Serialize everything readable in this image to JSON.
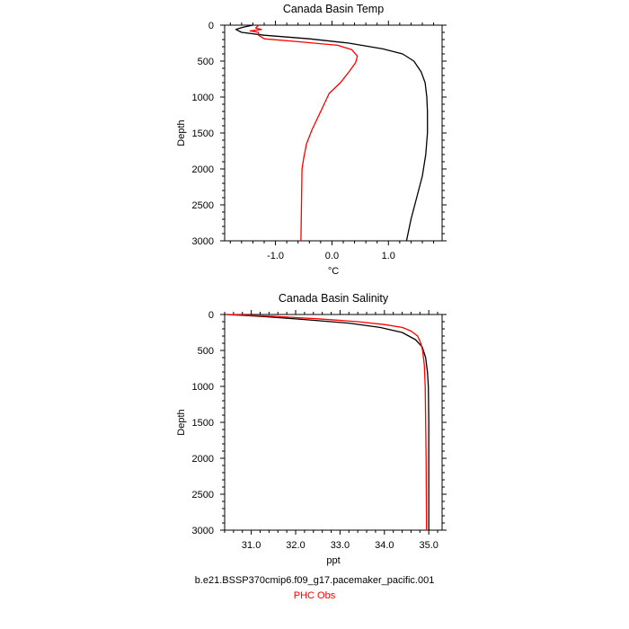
{
  "colors": {
    "model": "#000000",
    "observations": "#ff0000",
    "axis": "#000000"
  },
  "chart_data": [
    {
      "type": "line",
      "title": "Canada Basin Temp",
      "xlabel": "°C",
      "ylabel": "Depth",
      "xlim": [
        -1.9,
        1.95
      ],
      "ylim": [
        3000,
        0
      ],
      "y_reversed": true,
      "xticks": [
        -1.0,
        0.0,
        1.0
      ],
      "xticklabels": [
        "-1.0",
        "0.0",
        "1.0"
      ],
      "yticks": [
        0,
        500,
        1000,
        1500,
        2000,
        2500,
        3000
      ],
      "yticklabels": [
        "0",
        "500",
        "1000",
        "1500",
        "2000",
        "2500",
        "3000"
      ],
      "series": [
        {
          "color": "#000000",
          "points": [
            [
              -1.4,
              0
            ],
            [
              -1.58,
              30
            ],
            [
              -1.7,
              60
            ],
            [
              -1.6,
              100
            ],
            [
              -1.2,
              140
            ],
            [
              -0.4,
              190
            ],
            [
              0.3,
              250
            ],
            [
              0.9,
              330
            ],
            [
              1.25,
              400
            ],
            [
              1.45,
              500
            ],
            [
              1.58,
              650
            ],
            [
              1.65,
              800
            ],
            [
              1.68,
              1000
            ],
            [
              1.69,
              1200
            ],
            [
              1.69,
              1500
            ],
            [
              1.66,
              1800
            ],
            [
              1.6,
              2100
            ],
            [
              1.5,
              2400
            ],
            [
              1.4,
              2700
            ],
            [
              1.32,
              3000
            ]
          ]
        },
        {
          "color": "#ff0000",
          "points": [
            [
              -1.3,
              0
            ],
            [
              -1.35,
              40
            ],
            [
              -1.25,
              60
            ],
            [
              -1.45,
              80
            ],
            [
              -1.3,
              100
            ],
            [
              -1.3,
              140
            ],
            [
              -1.2,
              190
            ],
            [
              -0.6,
              230
            ],
            [
              0.1,
              280
            ],
            [
              0.35,
              340
            ],
            [
              0.45,
              430
            ],
            [
              0.42,
              520
            ],
            [
              0.3,
              650
            ],
            [
              0.15,
              800
            ],
            [
              -0.05,
              950
            ],
            [
              -0.2,
              1200
            ],
            [
              -0.35,
              1450
            ],
            [
              -0.45,
              1650
            ],
            [
              -0.5,
              1850
            ],
            [
              -0.53,
              2000
            ],
            [
              -0.54,
              2500
            ],
            [
              -0.55,
              3000
            ]
          ]
        }
      ]
    },
    {
      "type": "line",
      "title": "Canada Basin Salinity",
      "xlabel": "ppt",
      "ylabel": "Depth",
      "xlim": [
        30.4,
        35.3
      ],
      "ylim": [
        3000,
        0
      ],
      "y_reversed": true,
      "xticks": [
        31.0,
        32.0,
        33.0,
        34.0,
        35.0
      ],
      "xticklabels": [
        "31.0",
        "32.0",
        "33.0",
        "34.0",
        "35.0"
      ],
      "yticks": [
        0,
        500,
        1000,
        1500,
        2000,
        2500,
        3000
      ],
      "yticklabels": [
        "0",
        "500",
        "1000",
        "1500",
        "2000",
        "2500",
        "3000"
      ],
      "series": [
        {
          "color": "#000000",
          "points": [
            [
              30.45,
              0
            ],
            [
              31.3,
              30
            ],
            [
              32.2,
              70
            ],
            [
              33.2,
              120
            ],
            [
              33.9,
              180
            ],
            [
              34.4,
              250
            ],
            [
              34.7,
              350
            ],
            [
              34.85,
              450
            ],
            [
              34.93,
              600
            ],
            [
              34.97,
              800
            ],
            [
              34.99,
              1000
            ],
            [
              35.0,
              1500
            ],
            [
              35.0,
              2000
            ],
            [
              35.0,
              3000
            ]
          ]
        },
        {
          "color": "#ff0000",
          "points": [
            [
              30.45,
              0
            ],
            [
              31.5,
              25
            ],
            [
              32.5,
              60
            ],
            [
              33.4,
              100
            ],
            [
              34.0,
              140
            ],
            [
              34.4,
              180
            ],
            [
              34.6,
              230
            ],
            [
              34.75,
              300
            ],
            [
              34.82,
              400
            ],
            [
              34.86,
              500
            ],
            [
              34.9,
              700
            ],
            [
              34.92,
              1000
            ],
            [
              34.93,
              1500
            ],
            [
              34.94,
              2000
            ],
            [
              34.95,
              3000
            ]
          ]
        }
      ]
    }
  ],
  "legend": {
    "model_label": "b.e21.BSSP370cmip6.f09_g17.pacemaker_pacific.001",
    "obs_label": "PHC Obs"
  }
}
